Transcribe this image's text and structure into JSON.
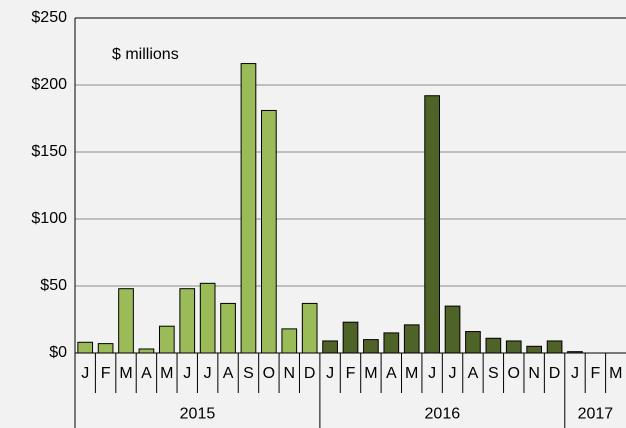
{
  "chart_data": {
    "type": "bar",
    "annotation": "$ millions",
    "groups": [
      {
        "name": "2015",
        "color": "#9bbb59",
        "categories": [
          "J",
          "F",
          "M",
          "A",
          "M",
          "J",
          "J",
          "A",
          "S",
          "O",
          "N",
          "D"
        ],
        "values": [
          8,
          7,
          48,
          3,
          20,
          48,
          52,
          37,
          216,
          181,
          18,
          37
        ]
      },
      {
        "name": "2016",
        "color": "#4f6228",
        "categories": [
          "J",
          "F",
          "M",
          "A",
          "M",
          "J",
          "J",
          "A",
          "S",
          "O",
          "N",
          "D"
        ],
        "values": [
          9,
          23,
          10,
          15,
          21,
          192,
          35,
          16,
          11,
          9,
          5,
          9
        ]
      },
      {
        "name": "2017",
        "color": "#4f6228",
        "categories": [
          "J",
          "F",
          "M"
        ],
        "values": [
          1,
          0,
          0
        ]
      }
    ],
    "ylim": [
      0,
      250
    ],
    "yticks": [
      {
        "value": 0,
        "label": "$0"
      },
      {
        "value": 50,
        "label": "$50"
      },
      {
        "value": 100,
        "label": "$100"
      },
      {
        "value": 150,
        "label": "$150"
      },
      {
        "value": 200,
        "label": "$200"
      },
      {
        "value": 250,
        "label": "$250"
      }
    ],
    "grid": true
  }
}
